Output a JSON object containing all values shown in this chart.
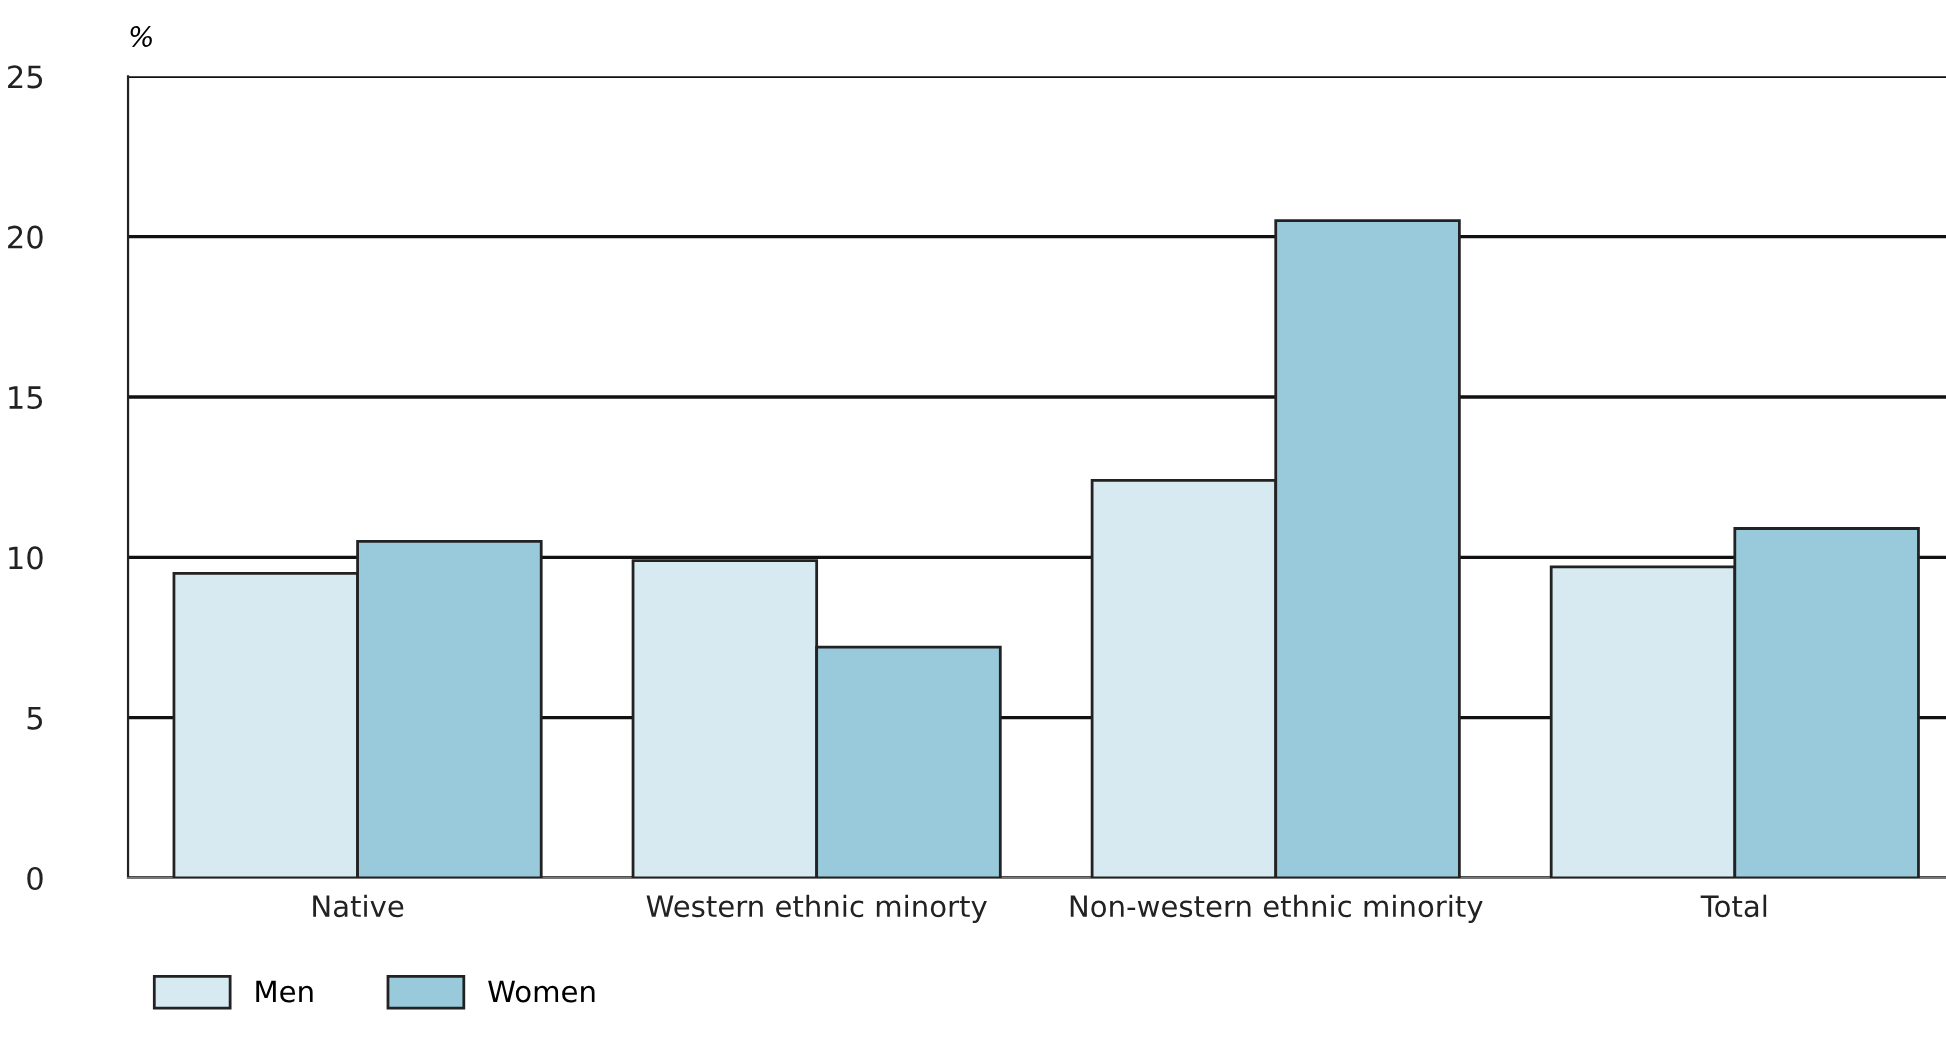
{
  "chart_data": {
    "type": "bar",
    "ylabel": "%",
    "categories": [
      "Native",
      "Western ethnic minorty",
      "Non-western ethnic minority",
      "Total"
    ],
    "series": [
      {
        "name": "Men",
        "color": "#d8eaf1",
        "values": [
          9.5,
          9.9,
          12.4,
          9.7
        ]
      },
      {
        "name": "Women",
        "color": "#98cadc",
        "values": [
          10.5,
          7.2,
          20.5,
          10.9
        ]
      }
    ],
    "ylim": [
      0,
      25
    ],
    "yticks": [
      0,
      5,
      10,
      15,
      20,
      25
    ],
    "grid": "y",
    "legend": "bottom left"
  }
}
